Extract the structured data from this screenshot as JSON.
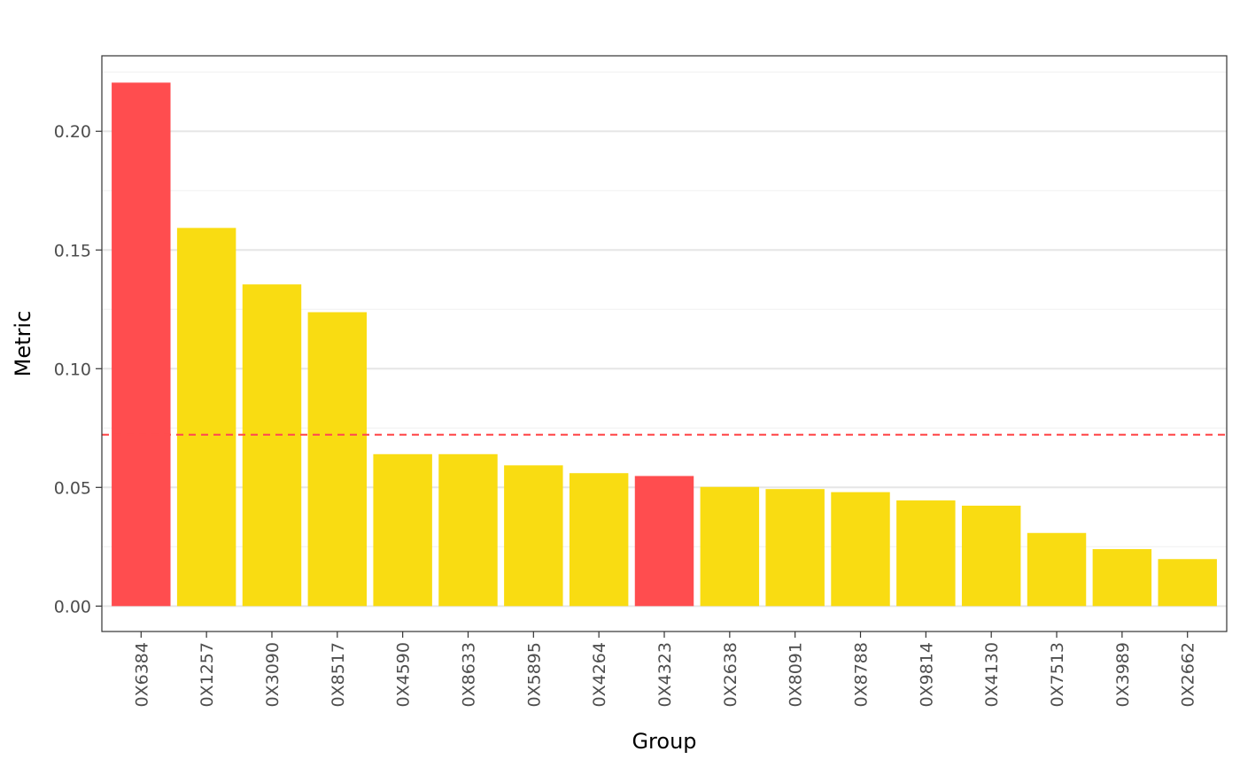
{
  "chart_data": {
    "type": "bar",
    "xlabel": "Group",
    "ylabel": "Metric",
    "categories": [
      "0X6384",
      "0X1257",
      "0X3090",
      "0X8517",
      "0X4590",
      "0X8633",
      "0X5895",
      "0X4264",
      "0X4323",
      "0X2638",
      "0X8091",
      "0X8788",
      "0X9814",
      "0X4130",
      "0X7513",
      "0X3989",
      "0X2662"
    ],
    "values": [
      0.2205,
      0.1593,
      0.1355,
      0.1238,
      0.064,
      0.064,
      0.0593,
      0.056,
      0.0548,
      0.0502,
      0.0493,
      0.048,
      0.0445,
      0.0423,
      0.0308,
      0.024,
      0.0198
    ],
    "highlighted": [
      true,
      false,
      false,
      false,
      false,
      false,
      false,
      false,
      true,
      false,
      false,
      false,
      false,
      false,
      false,
      false,
      false
    ],
    "colors": {
      "highlight": "#FF4D4F",
      "normal": "#F9DC12",
      "reference_line": "#FF4D4F"
    },
    "reference_line": 0.0722,
    "ylim": [
      -0.0107,
      0.2318
    ],
    "yticks": [
      0.0,
      0.05,
      0.1,
      0.15,
      0.2
    ],
    "ytick_labels": [
      "0.00",
      "0.05",
      "0.10",
      "0.15",
      "0.20"
    ],
    "grid": true,
    "legend": "none"
  }
}
